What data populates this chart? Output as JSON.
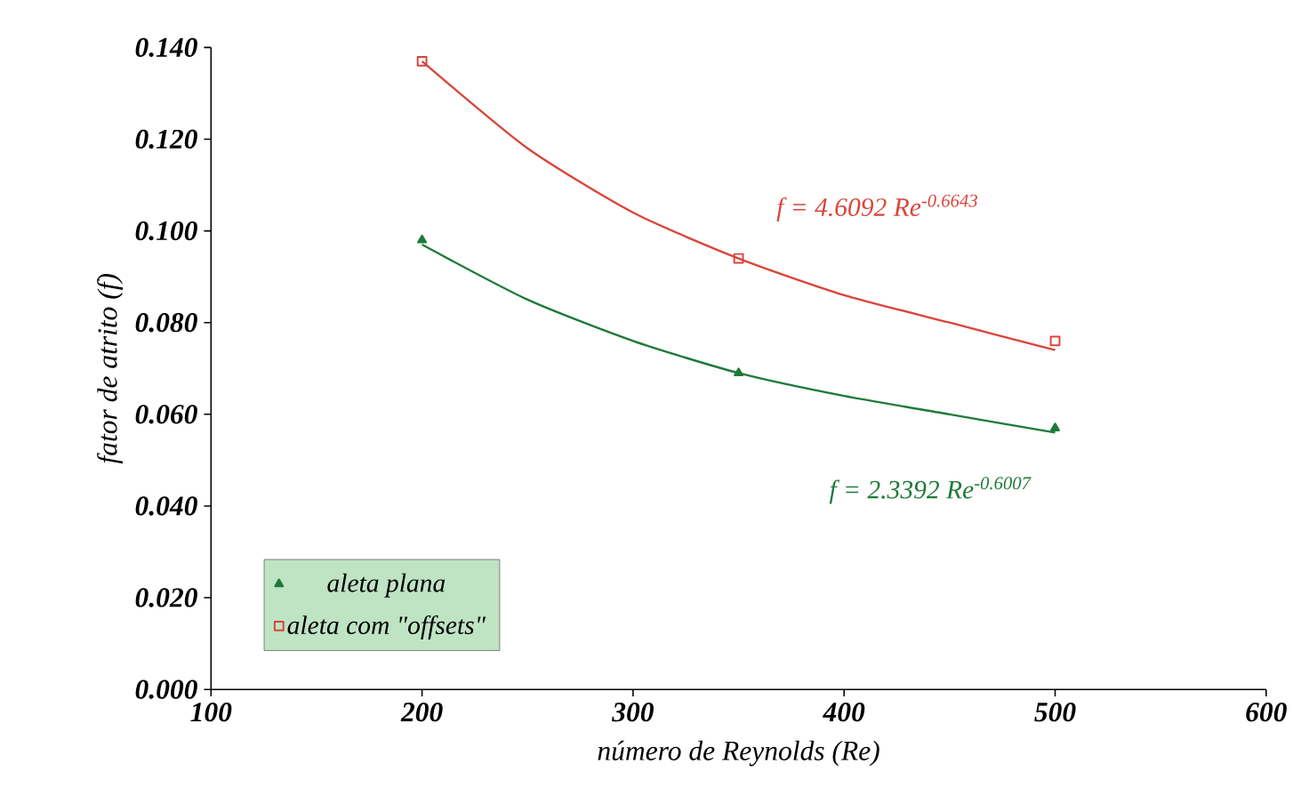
{
  "chart_data": {
    "type": "scatter",
    "xlabel": "número de Reynolds (Re)",
    "ylabel": "fator de atrito (f)",
    "xlim": [
      100,
      600
    ],
    "ylim": [
      0,
      0.14
    ],
    "xticks": [
      100,
      200,
      300,
      400,
      500,
      600
    ],
    "yticks": [
      {
        "value": 0,
        "label": "0.000"
      },
      {
        "value": 0.02,
        "label": "0.020"
      },
      {
        "value": 0.04,
        "label": "0.040"
      },
      {
        "value": 0.06,
        "label": "0.060"
      },
      {
        "value": 0.08,
        "label": "0.080"
      },
      {
        "value": 0.1,
        "label": "0.100"
      },
      {
        "value": 0.12,
        "label": "0.120"
      },
      {
        "value": 0.14,
        "label": "0.140"
      }
    ],
    "grid": false,
    "legend": "bottom left",
    "series": [
      {
        "name": "aleta plana",
        "marker": "triangle",
        "color": "#1f7a3a",
        "x": [
          200,
          350,
          500
        ],
        "values": [
          0.098,
          0.069,
          0.057
        ]
      },
      {
        "name": "aleta com \"offsets\"",
        "marker": "square",
        "color": "#d9453a",
        "x": [
          200,
          350,
          500
        ],
        "values": [
          0.137,
          0.094,
          0.076
        ]
      },
      {
        "type": "line",
        "marker": "none",
        "line_style": "solid",
        "color": "#1f7a3a",
        "x": [
          200,
          250,
          300,
          350,
          400,
          450,
          500
        ],
        "values": [
          0.097,
          0.085,
          0.076,
          0.069,
          0.064,
          0.06,
          0.056
        ]
      },
      {
        "type": "line",
        "marker": "none",
        "line_style": "solid",
        "color": "#d9453a",
        "x": [
          200,
          250,
          300,
          350,
          400,
          450,
          500
        ],
        "values": [
          0.137,
          0.118,
          0.104,
          0.094,
          0.086,
          0.08,
          0.074
        ]
      }
    ],
    "annotations": [
      "f = 4.6092 Re$^{-0.6643}$",
      "f = 2.3392 Re$^{-0.6007}$"
    ]
  }
}
